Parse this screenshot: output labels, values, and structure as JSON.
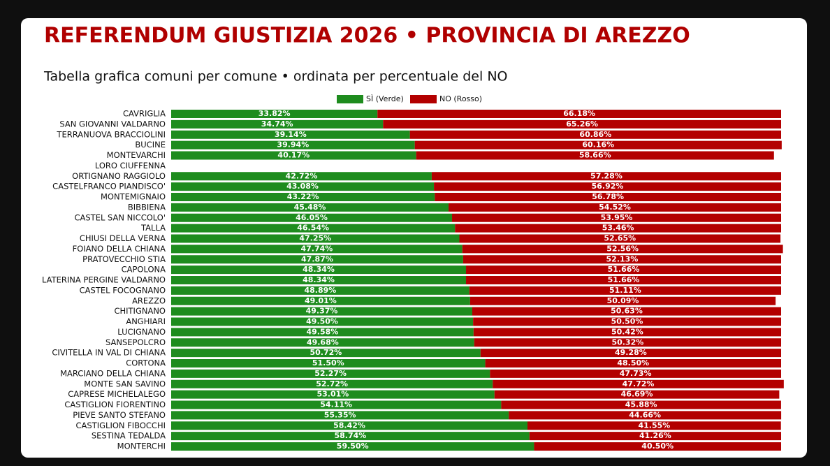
{
  "chart_data": {
    "type": "stacked-bar-horizontal",
    "title": "REFERENDUM GIUSTIZIA 2026 • PROVINCIA DI AREZZO",
    "subtitle": "Tabella grafica comuni per comune • ordinata per percentuale del NO",
    "categories": [
      "CAVRIGLIA",
      "SAN GIOVANNI VALDARNO",
      "TERRANUOVA BRACCIOLINI",
      "BUCINE",
      "MONTEVARCHI",
      "LORO CIUFFENNA",
      "ORTIGNANO RAGGIOLO",
      "CASTELFRANCO PIANDISCO'",
      "MONTEMIGNAIO",
      "BIBBIENA",
      "CASTEL SAN NICCOLO'",
      "TALLA",
      "CHIUSI DELLA VERNA",
      "FOIANO DELLA CHIANA",
      "PRATOVECCHIO STIA",
      "CAPOLONA",
      "LATERINA PERGINE VALDARNO",
      "CASTEL FOCOGNANO",
      "AREZZO",
      "CHITIGNANO",
      "ANGHIARI",
      "LUCIGNANO",
      "SANSEPOLCRO",
      "CIVITELLA IN VAL DI CHIANA",
      "CORTONA",
      "MARCIANO DELLA CHIANA",
      "MONTE SAN SAVINO",
      "CAPRESE MICHELALEGO",
      "CASTIGLION FIORENTINO",
      "PIEVE SANTO STEFANO",
      "CASTIGLION FIBOCCHI",
      "SESTINA TEDALDA",
      "MONTERCHI"
    ],
    "series": [
      {
        "name": "SÌ (Verde)",
        "color": "#1e8c1e",
        "values": [
          33.82,
          34.74,
          39.14,
          39.94,
          40.17,
          null,
          42.72,
          43.08,
          43.22,
          45.48,
          46.05,
          46.54,
          47.25,
          47.74,
          47.87,
          48.34,
          48.34,
          48.89,
          49.01,
          49.37,
          49.5,
          49.58,
          49.68,
          50.72,
          51.5,
          52.27,
          52.72,
          53.01,
          54.11,
          55.35,
          58.42,
          58.74,
          59.5
        ],
        "value_labels": [
          "33.82%",
          "34.74%",
          "39.14%",
          "39.94%",
          "40.17%",
          null,
          "42.72%",
          "43.08%",
          "43.22%",
          "45.48%",
          "46.05%",
          "46.54%",
          "47.25%",
          "47.74%",
          "47.87%",
          "48.34%",
          "48.34%",
          "48.89%",
          "49.01%",
          "49.37%",
          "49.50%",
          "49.58%",
          "49.68%",
          "50.72%",
          "51.50%",
          "52.27%",
          "52.72%",
          "53.01%",
          "54.11%",
          "55.35%",
          "58.42%",
          "58.74%",
          "59.50%"
        ]
      },
      {
        "name": "NO (Rosso)",
        "color": "#b30000",
        "values": [
          66.18,
          65.26,
          60.86,
          60.16,
          58.66,
          null,
          57.28,
          56.92,
          56.78,
          54.52,
          53.95,
          53.46,
          52.65,
          52.56,
          52.13,
          51.66,
          51.66,
          51.11,
          50.09,
          50.63,
          50.5,
          50.42,
          50.32,
          49.28,
          48.5,
          47.73,
          47.72,
          46.69,
          45.88,
          44.66,
          41.55,
          41.26,
          40.5
        ],
        "value_labels": [
          "66.18%",
          "65.26%",
          "60.86%",
          "60.16%",
          "58.66%",
          null,
          "57.28%",
          "56.92%",
          "56.78%",
          "54.52%",
          "53.95%",
          "53.46%",
          "52.65%",
          "52.56%",
          "52.13%",
          "51.66%",
          "51.66%",
          "51.11%",
          "50.09%",
          "50.63%",
          "50.50%",
          "50.42%",
          "50.32%",
          "49.28%",
          "48.50%",
          "47.73%",
          "47.72%",
          "46.69%",
          "45.88%",
          "44.66%",
          "41.55%",
          "41.26%",
          "40.50%"
        ]
      }
    ],
    "xlim": [
      0,
      100
    ],
    "legend": "top"
  }
}
